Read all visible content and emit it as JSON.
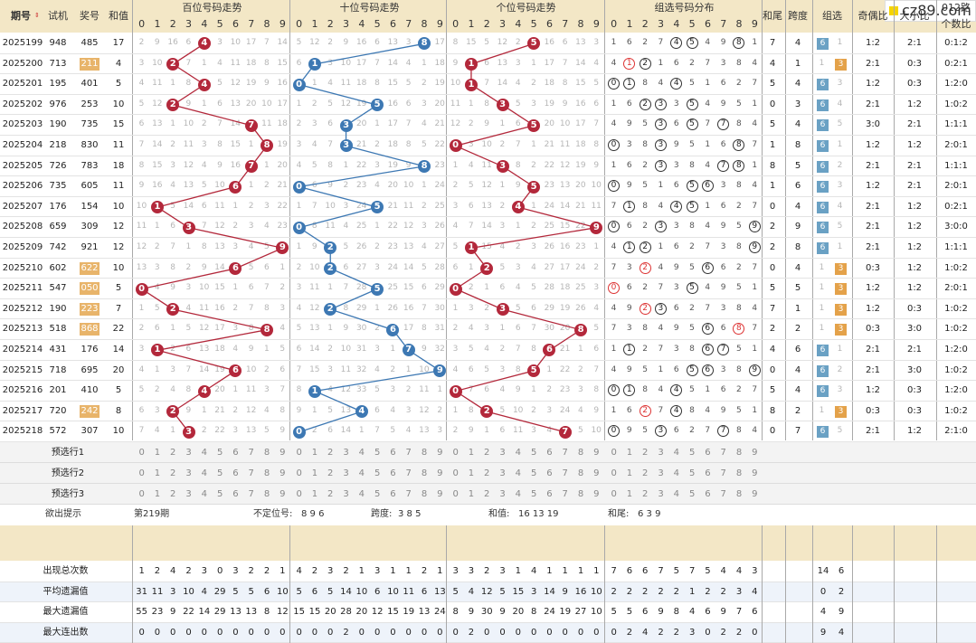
{
  "header": {
    "issue": "期号",
    "trial": "试机",
    "prize": "奖号",
    "sum": "和值",
    "h_hundreds": "百位号码走势",
    "h_tens": "十位号码走势",
    "h_units": "个位号码走势",
    "h_group": "组选号码分布",
    "tail": "和尾",
    "span": "跨度",
    "groupsel": "组选",
    "oddeven": "奇偶比",
    "bigsmall": "大小比",
    "route": "012路",
    "route2": "个数比"
  },
  "digits": [
    "0",
    "1",
    "2",
    "3",
    "4",
    "5",
    "6",
    "7",
    "8",
    "9"
  ],
  "logo": "cz89.com",
  "rows": [
    {
      "issue": "2025199",
      "trial": "948",
      "prize": "485",
      "sum": "17",
      "h": 4,
      "t": 8,
      "u": 5,
      "tail": "7",
      "span": "4",
      "g": "6",
      "oe": "1:2",
      "bs": "2:1",
      "route": "0:1:2",
      "hl": false
    },
    {
      "issue": "2025200",
      "trial": "713",
      "prize": "211",
      "sum": "4",
      "h": 2,
      "t": 1,
      "u": 1,
      "tail": "4",
      "span": "1",
      "g": "3",
      "oe": "2:1",
      "bs": "0:3",
      "route": "0:2:1",
      "hl": true
    },
    {
      "issue": "2025201",
      "trial": "195",
      "prize": "401",
      "sum": "5",
      "h": 4,
      "t": 0,
      "u": 1,
      "tail": "5",
      "span": "4",
      "g": "6",
      "oe": "1:2",
      "bs": "0:3",
      "route": "1:2:0",
      "hl": false
    },
    {
      "issue": "2025202",
      "trial": "976",
      "prize": "253",
      "sum": "10",
      "h": 2,
      "t": 5,
      "u": 3,
      "tail": "0",
      "span": "3",
      "g": "6",
      "oe": "2:1",
      "bs": "1:2",
      "route": "1:0:2",
      "hl": false
    },
    {
      "issue": "2025203",
      "trial": "190",
      "prize": "735",
      "sum": "15",
      "h": 7,
      "t": 3,
      "u": 5,
      "tail": "5",
      "span": "4",
      "g": "6",
      "oe": "3:0",
      "bs": "2:1",
      "route": "1:1:1",
      "hl": false
    },
    {
      "issue": "2025204",
      "trial": "218",
      "prize": "830",
      "sum": "11",
      "h": 8,
      "t": 3,
      "u": 0,
      "tail": "1",
      "span": "8",
      "g": "6",
      "oe": "1:2",
      "bs": "1:2",
      "route": "2:0:1",
      "hl": false
    },
    {
      "issue": "2025205",
      "trial": "726",
      "prize": "783",
      "sum": "18",
      "h": 7,
      "t": 8,
      "u": 3,
      "tail": "8",
      "span": "5",
      "g": "6",
      "oe": "2:1",
      "bs": "2:1",
      "route": "1:1:1",
      "hl": false
    },
    {
      "issue": "2025206",
      "trial": "735",
      "prize": "605",
      "sum": "11",
      "h": 6,
      "t": 0,
      "u": 5,
      "tail": "1",
      "span": "6",
      "g": "6",
      "oe": "1:2",
      "bs": "2:1",
      "route": "2:0:1",
      "hl": false
    },
    {
      "issue": "2025207",
      "trial": "176",
      "prize": "154",
      "sum": "10",
      "h": 1,
      "t": 5,
      "u": 4,
      "tail": "0",
      "span": "4",
      "g": "6",
      "oe": "2:1",
      "bs": "1:2",
      "route": "0:2:1",
      "hl": false
    },
    {
      "issue": "2025208",
      "trial": "659",
      "prize": "309",
      "sum": "12",
      "h": 3,
      "t": 0,
      "u": 9,
      "tail": "2",
      "span": "9",
      "g": "6",
      "oe": "2:1",
      "bs": "1:2",
      "route": "3:0:0",
      "hl": false
    },
    {
      "issue": "2025209",
      "trial": "742",
      "prize": "921",
      "sum": "12",
      "h": 9,
      "t": 2,
      "u": 1,
      "tail": "2",
      "span": "8",
      "g": "6",
      "oe": "2:1",
      "bs": "1:2",
      "route": "1:1:1",
      "hl": false
    },
    {
      "issue": "2025210",
      "trial": "602",
      "prize": "622",
      "sum": "10",
      "h": 6,
      "t": 2,
      "u": 2,
      "tail": "0",
      "span": "4",
      "g": "3",
      "oe": "0:3",
      "bs": "1:2",
      "route": "1:0:2",
      "hl": true
    },
    {
      "issue": "2025211",
      "trial": "547",
      "prize": "050",
      "sum": "5",
      "h": 0,
      "t": 5,
      "u": 0,
      "tail": "5",
      "span": "5",
      "g": "3",
      "oe": "1:2",
      "bs": "1:2",
      "route": "2:0:1",
      "hl": true
    },
    {
      "issue": "2025212",
      "trial": "190",
      "prize": "223",
      "sum": "7",
      "h": 2,
      "t": 2,
      "u": 3,
      "tail": "7",
      "span": "1",
      "g": "3",
      "oe": "1:2",
      "bs": "0:3",
      "route": "1:0:2",
      "hl": true
    },
    {
      "issue": "2025213",
      "trial": "518",
      "prize": "868",
      "sum": "22",
      "h": 8,
      "t": 6,
      "u": 8,
      "tail": "2",
      "span": "2",
      "g": "3",
      "oe": "0:3",
      "bs": "3:0",
      "route": "1:0:2",
      "hl": true
    },
    {
      "issue": "2025214",
      "trial": "431",
      "prize": "176",
      "sum": "14",
      "h": 1,
      "t": 7,
      "u": 6,
      "tail": "4",
      "span": "6",
      "g": "6",
      "oe": "2:1",
      "bs": "2:1",
      "route": "1:2:0",
      "hl": false
    },
    {
      "issue": "2025215",
      "trial": "718",
      "prize": "695",
      "sum": "20",
      "h": 6,
      "t": 9,
      "u": 5,
      "tail": "0",
      "span": "4",
      "g": "6",
      "oe": "2:1",
      "bs": "3:0",
      "route": "1:0:2",
      "hl": false
    },
    {
      "issue": "2025216",
      "trial": "201",
      "prize": "410",
      "sum": "5",
      "h": 4,
      "t": 1,
      "u": 0,
      "tail": "5",
      "span": "4",
      "g": "6",
      "oe": "1:2",
      "bs": "0:3",
      "route": "1:2:0",
      "hl": false
    },
    {
      "issue": "2025217",
      "trial": "720",
      "prize": "242",
      "sum": "8",
      "h": 2,
      "t": 4,
      "u": 2,
      "tail": "8",
      "span": "2",
      "g": "3",
      "oe": "0:3",
      "bs": "0:3",
      "route": "1:0:2",
      "hl": true
    },
    {
      "issue": "2025218",
      "trial": "572",
      "prize": "307",
      "sum": "10",
      "h": 3,
      "t": 0,
      "u": 7,
      "tail": "0",
      "span": "7",
      "g": "6",
      "oe": "2:1",
      "bs": "1:2",
      "route": "2:1:0",
      "hl": false
    }
  ],
  "preselect": [
    "预选行1",
    "预选行2",
    "预选行3"
  ],
  "hint": {
    "label": "欲出提示",
    "issue": "第219期",
    "pos_label": "不定位号:",
    "pos": "8 9 6",
    "span_label": "跨度:",
    "span": "3 8 5",
    "sum_label": "和值:",
    "sum": "16 13 19",
    "tail_label": "和尾:",
    "tail": "6 3 9"
  },
  "stats": [
    {
      "label": "出现总次数",
      "h": [
        "1",
        "2",
        "4",
        "2",
        "3",
        "0",
        "3",
        "2",
        "2",
        "1"
      ],
      "t": [
        "4",
        "2",
        "3",
        "2",
        "1",
        "3",
        "1",
        "1",
        "2",
        "1"
      ],
      "u": [
        "3",
        "3",
        "2",
        "3",
        "1",
        "4",
        "1",
        "1",
        "1",
        "1"
      ],
      "g": [
        "7",
        "6",
        "6",
        "7",
        "5",
        "7",
        "5",
        "4",
        "4",
        "3"
      ],
      "g6": "14",
      "g3": "6"
    },
    {
      "label": "平均遗漏值",
      "h": [
        "31",
        "11",
        "3",
        "10",
        "4",
        "29",
        "5",
        "5",
        "6",
        "10"
      ],
      "t": [
        "5",
        "6",
        "5",
        "14",
        "10",
        "6",
        "10",
        "11",
        "6",
        "13"
      ],
      "u": [
        "5",
        "4",
        "12",
        "5",
        "15",
        "3",
        "14",
        "9",
        "16",
        "10"
      ],
      "g": [
        "2",
        "2",
        "2",
        "2",
        "2",
        "1",
        "2",
        "2",
        "3",
        "4"
      ],
      "g6": "0",
      "g3": "2"
    },
    {
      "label": "最大遗漏值",
      "h": [
        "55",
        "23",
        "9",
        "22",
        "14",
        "29",
        "13",
        "13",
        "8",
        "12"
      ],
      "t": [
        "15",
        "15",
        "20",
        "28",
        "20",
        "12",
        "15",
        "19",
        "13",
        "24"
      ],
      "u": [
        "8",
        "9",
        "30",
        "9",
        "20",
        "8",
        "24",
        "19",
        "27",
        "10"
      ],
      "g": [
        "5",
        "5",
        "6",
        "9",
        "8",
        "4",
        "6",
        "9",
        "7",
        "6"
      ],
      "g6": "4",
      "g3": "9"
    },
    {
      "label": "最大连出数",
      "h": [
        "0",
        "0",
        "0",
        "0",
        "0",
        "0",
        "0",
        "0",
        "0",
        "0"
      ],
      "t": [
        "0",
        "0",
        "0",
        "2",
        "0",
        "0",
        "0",
        "0",
        "0",
        "0"
      ],
      "u": [
        "0",
        "2",
        "0",
        "0",
        "0",
        "0",
        "0",
        "0",
        "0",
        "0"
      ],
      "g": [
        "0",
        "2",
        "4",
        "2",
        "2",
        "3",
        "0",
        "2",
        "2",
        "0"
      ],
      "g6": "9",
      "g3": "4"
    }
  ],
  "colors": {
    "red": "#b3283b",
    "blue": "#3d78b3",
    "header": "#f3e7c6",
    "orange": "#e8b46a"
  }
}
